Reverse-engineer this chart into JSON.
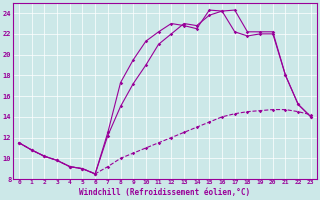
{
  "xlabel": "Windchill (Refroidissement éolien,°C)",
  "background_color": "#cce8e8",
  "line_color": "#990099",
  "xlim": [
    -0.5,
    23.5
  ],
  "ylim": [
    8,
    25
  ],
  "xticks": [
    0,
    1,
    2,
    3,
    4,
    5,
    6,
    7,
    8,
    9,
    10,
    11,
    12,
    13,
    14,
    15,
    16,
    17,
    18,
    19,
    20,
    21,
    22,
    23
  ],
  "yticks": [
    8,
    10,
    12,
    14,
    16,
    18,
    20,
    22,
    24
  ],
  "line_straight_x": [
    0,
    1,
    2,
    3,
    4,
    5,
    6,
    7,
    8,
    9,
    10,
    11,
    12,
    13,
    14,
    15,
    16,
    17,
    18,
    19,
    20,
    21,
    22,
    23
  ],
  "line_straight_y": [
    11.5,
    10.8,
    10.2,
    9.8,
    9.2,
    9.0,
    8.5,
    9.2,
    10.0,
    10.5,
    11.0,
    11.5,
    12.0,
    12.5,
    13.0,
    13.5,
    14.0,
    14.3,
    14.5,
    14.6,
    14.7,
    14.7,
    14.5,
    14.2
  ],
  "line_upper_x": [
    0,
    1,
    2,
    3,
    4,
    5,
    6,
    7,
    8,
    9,
    10,
    11,
    12,
    13,
    14,
    15,
    16,
    17,
    18,
    19,
    20,
    21,
    22,
    23
  ],
  "line_upper_y": [
    11.5,
    10.8,
    10.2,
    9.8,
    9.2,
    9.0,
    8.5,
    12.5,
    17.3,
    19.5,
    21.3,
    22.2,
    23.0,
    22.8,
    22.5,
    24.3,
    24.2,
    24.3,
    22.2,
    22.2,
    22.2,
    18.0,
    15.2,
    14.0
  ],
  "line_lower_x": [
    0,
    1,
    2,
    3,
    4,
    5,
    6,
    7,
    8,
    9,
    10,
    11,
    12,
    13,
    14,
    15,
    16,
    17,
    18,
    19,
    20,
    21,
    22,
    23
  ],
  "line_lower_y": [
    11.5,
    10.8,
    10.2,
    9.8,
    9.2,
    9.0,
    8.5,
    12.2,
    15.0,
    17.2,
    19.0,
    21.0,
    22.0,
    23.0,
    22.8,
    23.8,
    24.2,
    22.2,
    21.8,
    22.0,
    22.0,
    18.0,
    15.2,
    14.0
  ]
}
